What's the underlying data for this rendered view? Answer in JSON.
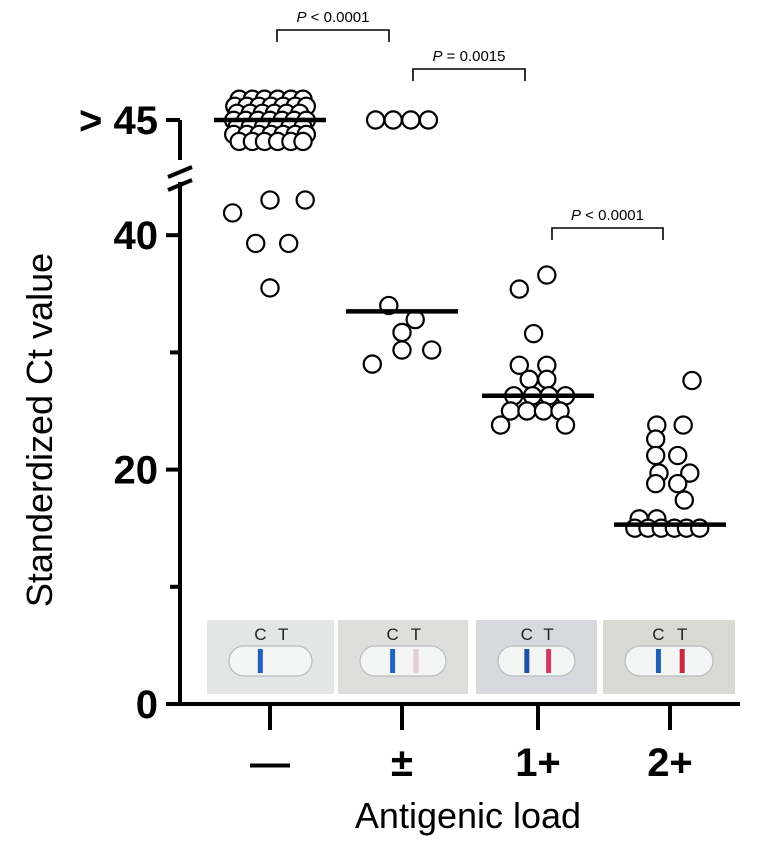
{
  "chart_data": {
    "type": "scatter",
    "ylabel": "Standerdized Ct value",
    "xlabel": "Antigenic load",
    "y_ticks": [
      {
        "value": 0,
        "label": "0"
      },
      {
        "value": 10,
        "label": ""
      },
      {
        "value": 20,
        "label": "20"
      },
      {
        "value": 30,
        "label": ""
      },
      {
        "value": 40,
        "label": "40"
      },
      {
        "value": 50,
        "label": "> 45"
      }
    ],
    "ylim": [
      0,
      50
    ],
    "axis_break": true,
    "categories": [
      "—",
      "±",
      "1+",
      "2+"
    ],
    "groups": [
      {
        "category": "—",
        "median": 50,
        "points": [
          {
            "dx": -0.34,
            "y": 41.9
          },
          {
            "dx": 0.0,
            "y": 43.0
          },
          {
            "dx": 0.32,
            "y": 43.0
          },
          {
            "dx": -0.13,
            "y": 39.3
          },
          {
            "dx": 0.17,
            "y": 39.3
          },
          {
            "dx": 0.0,
            "y": 35.5
          },
          {
            "dx": -0.28,
            "y": 51.6
          },
          {
            "dx": -0.16,
            "y": 51.6
          },
          {
            "dx": -0.05,
            "y": 51.6
          },
          {
            "dx": 0.07,
            "y": 51.6
          },
          {
            "dx": 0.19,
            "y": 51.6
          },
          {
            "dx": 0.3,
            "y": 51.6
          },
          {
            "dx": -0.32,
            "y": 51.0
          },
          {
            "dx": -0.21,
            "y": 51.0
          },
          {
            "dx": -0.1,
            "y": 51.0
          },
          {
            "dx": 0.01,
            "y": 51.0
          },
          {
            "dx": 0.12,
            "y": 51.0
          },
          {
            "dx": 0.23,
            "y": 51.0
          },
          {
            "dx": 0.33,
            "y": 51.0
          },
          {
            "dx": -0.3,
            "y": 50.4
          },
          {
            "dx": -0.18,
            "y": 50.4
          },
          {
            "dx": -0.07,
            "y": 50.4
          },
          {
            "dx": 0.04,
            "y": 50.4
          },
          {
            "dx": 0.15,
            "y": 50.4
          },
          {
            "dx": 0.27,
            "y": 50.4
          },
          {
            "dx": -0.33,
            "y": 49.8
          },
          {
            "dx": -0.22,
            "y": 49.8
          },
          {
            "dx": -0.11,
            "y": 49.8
          },
          {
            "dx": 0.0,
            "y": 49.8
          },
          {
            "dx": 0.11,
            "y": 49.8
          },
          {
            "dx": 0.22,
            "y": 49.8
          },
          {
            "dx": 0.33,
            "y": 49.8
          },
          {
            "dx": -0.3,
            "y": 49.2
          },
          {
            "dx": -0.18,
            "y": 49.2
          },
          {
            "dx": -0.06,
            "y": 49.2
          },
          {
            "dx": 0.06,
            "y": 49.2
          },
          {
            "dx": 0.18,
            "y": 49.2
          },
          {
            "dx": 0.3,
            "y": 49.2
          },
          {
            "dx": -0.33,
            "y": 48.6
          },
          {
            "dx": -0.21,
            "y": 48.6
          },
          {
            "dx": -0.1,
            "y": 48.6
          },
          {
            "dx": 0.01,
            "y": 48.6
          },
          {
            "dx": 0.12,
            "y": 48.6
          },
          {
            "dx": 0.23,
            "y": 48.6
          },
          {
            "dx": 0.33,
            "y": 48.6
          },
          {
            "dx": -0.28,
            "y": 48.0
          },
          {
            "dx": -0.16,
            "y": 48.0
          },
          {
            "dx": -0.05,
            "y": 48.0
          },
          {
            "dx": 0.07,
            "y": 48.0
          },
          {
            "dx": 0.19,
            "y": 48.0
          },
          {
            "dx": 0.3,
            "y": 48.0
          }
        ]
      },
      {
        "category": "±",
        "median": 33.5,
        "points": [
          {
            "dx": -0.24,
            "y": 50
          },
          {
            "dx": -0.08,
            "y": 50
          },
          {
            "dx": 0.08,
            "y": 50
          },
          {
            "dx": 0.24,
            "y": 50
          },
          {
            "dx": -0.12,
            "y": 34.0
          },
          {
            "dx": 0.12,
            "y": 32.8
          },
          {
            "dx": 0.0,
            "y": 31.7
          },
          {
            "dx": 0.0,
            "y": 30.2
          },
          {
            "dx": 0.27,
            "y": 30.2
          },
          {
            "dx": -0.27,
            "y": 29.0
          }
        ]
      },
      {
        "category": "1+",
        "median": 26.3,
        "points": [
          {
            "dx": 0.08,
            "y": 36.6
          },
          {
            "dx": -0.17,
            "y": 35.4
          },
          {
            "dx": -0.04,
            "y": 31.6
          },
          {
            "dx": -0.17,
            "y": 28.9
          },
          {
            "dx": 0.08,
            "y": 28.9
          },
          {
            "dx": -0.08,
            "y": 27.7
          },
          {
            "dx": 0.08,
            "y": 27.7
          },
          {
            "dx": -0.22,
            "y": 26.3
          },
          {
            "dx": -0.05,
            "y": 26.3
          },
          {
            "dx": 0.1,
            "y": 26.3
          },
          {
            "dx": 0.25,
            "y": 26.3
          },
          {
            "dx": -0.25,
            "y": 25.0
          },
          {
            "dx": -0.1,
            "y": 25.0
          },
          {
            "dx": 0.05,
            "y": 25.0
          },
          {
            "dx": 0.2,
            "y": 25.0
          },
          {
            "dx": -0.34,
            "y": 23.8
          },
          {
            "dx": 0.25,
            "y": 23.8
          }
        ]
      },
      {
        "category": "2+",
        "median": 15.3,
        "points": [
          {
            "dx": 0.2,
            "y": 27.6
          },
          {
            "dx": -0.12,
            "y": 23.8
          },
          {
            "dx": 0.12,
            "y": 23.8
          },
          {
            "dx": -0.13,
            "y": 22.6
          },
          {
            "dx": -0.13,
            "y": 21.2
          },
          {
            "dx": 0.07,
            "y": 21.2
          },
          {
            "dx": -0.1,
            "y": 19.7
          },
          {
            "dx": 0.18,
            "y": 19.7
          },
          {
            "dx": -0.13,
            "y": 18.8
          },
          {
            "dx": 0.07,
            "y": 18.8
          },
          {
            "dx": 0.13,
            "y": 17.4
          },
          {
            "dx": -0.28,
            "y": 15.8
          },
          {
            "dx": -0.12,
            "y": 15.8
          },
          {
            "dx": -0.32,
            "y": 15.0
          },
          {
            "dx": -0.2,
            "y": 15.0
          },
          {
            "dx": -0.08,
            "y": 15.0
          },
          {
            "dx": 0.04,
            "y": 15.0
          },
          {
            "dx": 0.15,
            "y": 15.0
          },
          {
            "dx": 0.27,
            "y": 15.0
          }
        ]
      }
    ],
    "comparisons": [
      {
        "from": 0,
        "to": 1,
        "p_label": "P",
        "p_value": "< 0.0001"
      },
      {
        "from": 1,
        "to": 2,
        "p_label": "P",
        "p_value": "= 0.0015"
      },
      {
        "from": 2,
        "to": 3,
        "p_label": "P",
        "p_value": "< 0.0001"
      }
    ],
    "test_strips": [
      {
        "c_label": "C",
        "t_label": "T",
        "c_color": "#1f63c6",
        "t_color": "",
        "bg": "#e4e6e6"
      },
      {
        "c_label": "C",
        "t_label": "T",
        "c_color": "#1f63c6",
        "t_color": "#e5cfd3",
        "bg": "#dedfdd"
      },
      {
        "c_label": "C",
        "t_label": "T",
        "c_color": "#1f4fa8",
        "t_color": "#d23a5e",
        "bg": "#d7d8e0"
      },
      {
        "c_label": "C",
        "t_label": "T",
        "c_color": "#1f5fb8",
        "t_color": "#c9283e",
        "bg": "#d9d9d6"
      }
    ]
  }
}
